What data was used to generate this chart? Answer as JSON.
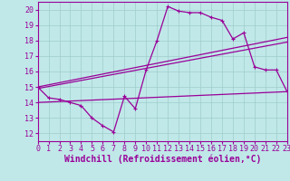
{
  "xlabel": "Windchill (Refroidissement éolien,°C)",
  "xlim": [
    0,
    23
  ],
  "ylim": [
    11.5,
    20.5
  ],
  "xticks": [
    0,
    1,
    2,
    3,
    4,
    5,
    6,
    7,
    8,
    9,
    10,
    11,
    12,
    13,
    14,
    15,
    16,
    17,
    18,
    19,
    20,
    21,
    22,
    23
  ],
  "yticks": [
    12,
    13,
    14,
    15,
    16,
    17,
    18,
    19,
    20
  ],
  "bg_color": "#c0e8e8",
  "grid_color": "#a0cccc",
  "line_color": "#990099",
  "line1_x": [
    0,
    1,
    2,
    3,
    4,
    5,
    6,
    7,
    8,
    9,
    10,
    11,
    12,
    13,
    14,
    15,
    16,
    17,
    18,
    19,
    20,
    21,
    22,
    23
  ],
  "line1_y": [
    15.0,
    14.3,
    14.2,
    14.0,
    13.8,
    13.0,
    12.5,
    12.1,
    14.4,
    13.6,
    16.1,
    18.0,
    20.2,
    19.9,
    19.8,
    19.8,
    19.5,
    19.3,
    18.1,
    18.5,
    16.3,
    16.1,
    16.1,
    14.7
  ],
  "line2_x": [
    0,
    23
  ],
  "line2_y": [
    14.0,
    14.7
  ],
  "line3_x": [
    0,
    23
  ],
  "line3_y": [
    14.9,
    17.9
  ],
  "line4_x": [
    0,
    23
  ],
  "line4_y": [
    15.0,
    18.2
  ],
  "font_size": 6,
  "xlabel_font_size": 7,
  "marker": "+"
}
